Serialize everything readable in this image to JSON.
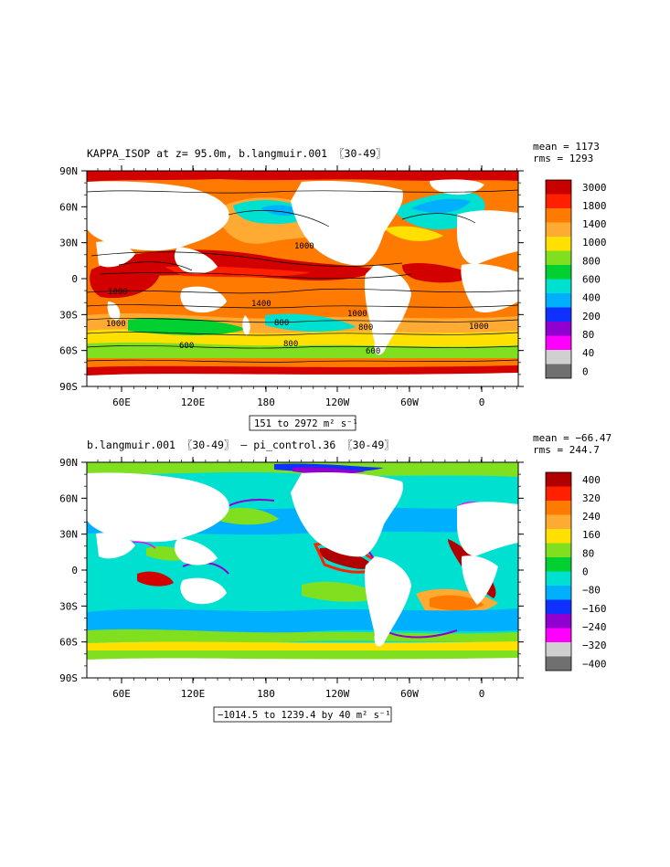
{
  "panels": [
    {
      "title": "KAPPA_ISOP at z=  95.0m, b.langmuir.001 〖30-49〗",
      "mean": "mean = 1173",
      "rms": "rms = 1293",
      "range": "151 to 2972 m² s⁻¹",
      "legend_labels": [
        "3000",
        "1800",
        "1400",
        "1000",
        "800",
        "600",
        "400",
        "200",
        "80",
        "40",
        "0"
      ],
      "legend_colors": [
        "#c80000",
        "#ff2000",
        "#ff7a00",
        "#ffaa33",
        "#ffe000",
        "#80e020",
        "#00d030",
        "#00e0d0",
        "#00b0ff",
        "#1030ff",
        "#9000d0",
        "#ff00ff",
        "#d0d0d0",
        "#707070"
      ],
      "contour_labels": [
        "1000",
        "1000",
        "1400",
        "1000",
        "800",
        "1000",
        "800",
        "600",
        "800",
        "600",
        "1000"
      ]
    },
    {
      "title": "b.langmuir.001 〖30-49〗 – pi_control.36 〖30-49〗",
      "mean": "mean = −66.47",
      "rms": "rms = 244.7",
      "range": "−1014.5 to 1239.4 by 40 m² s⁻¹",
      "legend_labels": [
        "400",
        "320",
        "240",
        "160",
        "80",
        "0",
        "−80",
        "−160",
        "−240",
        "−320",
        "−400"
      ],
      "legend_colors": [
        "#b00000",
        "#ff2000",
        "#ff7a00",
        "#ffaa33",
        "#ffe000",
        "#80e020",
        "#00d030",
        "#00e0d0",
        "#00b0ff",
        "#1030ff",
        "#9000d0",
        "#ff00ff",
        "#d0d0d0",
        "#707070"
      ],
      "contour_labels": []
    }
  ],
  "axes": {
    "lat_labels": [
      "90N",
      "60N",
      "30N",
      "0",
      "30S",
      "60S",
      "90S"
    ],
    "lon_labels": [
      "60E",
      "120E",
      "180",
      "120W",
      "60W",
      "0"
    ]
  }
}
